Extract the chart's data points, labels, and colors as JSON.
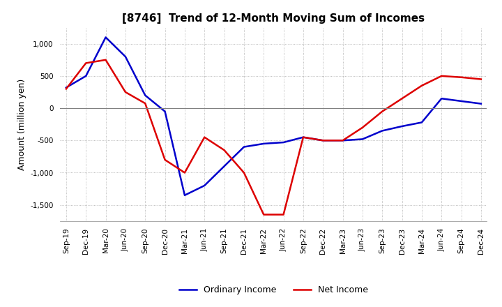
{
  "title": "[8746]  Trend of 12-Month Moving Sum of Incomes",
  "ylabel": "Amount (million yen)",
  "ylim": [
    -1750,
    1250
  ],
  "yticks": [
    -1500,
    -1000,
    -500,
    0,
    500,
    1000
  ],
  "background_color": "#ffffff",
  "grid_color": "#aaaaaa",
  "ordinary_income_color": "#0000cc",
  "net_income_color": "#dd0000",
  "x_labels": [
    "Sep-19",
    "Dec-19",
    "Mar-20",
    "Jun-20",
    "Sep-20",
    "Dec-20",
    "Mar-21",
    "Jun-21",
    "Sep-21",
    "Dec-21",
    "Mar-22",
    "Jun-22",
    "Sep-22",
    "Dec-22",
    "Mar-23",
    "Jun-23",
    "Sep-23",
    "Dec-23",
    "Mar-24",
    "Jun-24",
    "Sep-24",
    "Dec-24"
  ],
  "ordinary_income": [
    320,
    500,
    1100,
    800,
    200,
    -50,
    -1350,
    -1200,
    -900,
    -600,
    -550,
    -530,
    -450,
    -500,
    -500,
    -480,
    -350,
    -280,
    -220,
    150,
    110,
    70
  ],
  "net_income": [
    300,
    700,
    750,
    250,
    75,
    -800,
    -1000,
    -450,
    -650,
    -1000,
    -1650,
    -1650,
    -450,
    -500,
    -500,
    -300,
    -50,
    150,
    350,
    500,
    480,
    450
  ]
}
